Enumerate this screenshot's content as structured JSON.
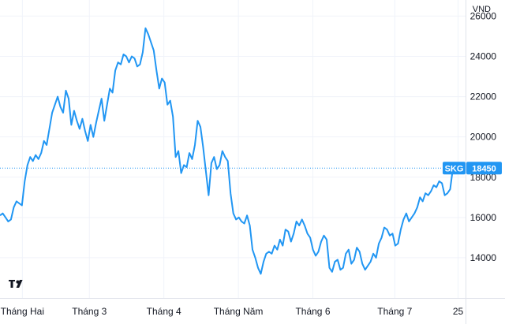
{
  "chart_data": {
    "type": "line",
    "unit_label": "VND",
    "y_ticks": [
      14000,
      16000,
      18000,
      20000,
      22000,
      24000,
      26000
    ],
    "ylim": [
      12000,
      26800
    ],
    "x_tick_labels": [
      "Tháng Hai",
      "Tháng 3",
      "Tháng 4",
      "Tháng Năm",
      "Tháng 6",
      "Tháng 7",
      "25"
    ],
    "x_tick_positions": [
      0,
      18,
      38,
      58,
      78,
      100,
      117
    ],
    "x_range": [
      -6,
      119
    ],
    "grid": true,
    "series": [
      {
        "name": "SKG",
        "color": "#2196f3",
        "last_value": "18450",
        "values": [
          16100,
          16200,
          16000,
          15800,
          15900,
          16500,
          16800,
          16700,
          16600,
          17800,
          18600,
          19000,
          18800,
          19100,
          18900,
          19200,
          19800,
          19600,
          20400,
          21200,
          21600,
          22000,
          21500,
          21200,
          22300,
          21900,
          20600,
          21300,
          20800,
          20400,
          20900,
          20300,
          19800,
          20600,
          20000,
          20700,
          21300,
          21900,
          20800,
          21600,
          22400,
          22200,
          23300,
          23700,
          23600,
          24100,
          24000,
          23700,
          24000,
          23900,
          23500,
          23600,
          24200,
          25400,
          25100,
          24700,
          24300,
          23300,
          22400,
          22900,
          22700,
          21600,
          21800,
          21000,
          19000,
          19300,
          18200,
          18600,
          18500,
          19200,
          18900,
          19600,
          20800,
          20500,
          19500,
          18300,
          17100,
          18700,
          19000,
          18400,
          18600,
          19300,
          19000,
          18800,
          17200,
          16200,
          15900,
          16000,
          15800,
          15700,
          16100,
          15600,
          14400,
          14000,
          13500,
          13200,
          13800,
          14200,
          14300,
          14200,
          14600,
          14400,
          14900,
          14600,
          15400,
          15300,
          14800,
          15200,
          15800,
          15600,
          15900,
          15600,
          15200,
          15000,
          14400,
          14100,
          14300,
          14800,
          15100,
          14900,
          13500,
          13300,
          13800,
          13900,
          13400,
          13500,
          14200,
          14400,
          13700,
          13900,
          14500,
          14300,
          13700,
          13400,
          13600,
          13800,
          14200,
          14000,
          14700,
          15000,
          15500,
          15400,
          15100,
          15200,
          14600,
          14700,
          15400,
          15900,
          16200,
          15800,
          16000,
          16200,
          16500,
          17000,
          16800,
          17200,
          17100,
          17300,
          17600,
          17500,
          17800,
          17700,
          17100,
          17200,
          17400,
          18450
        ]
      }
    ]
  }
}
